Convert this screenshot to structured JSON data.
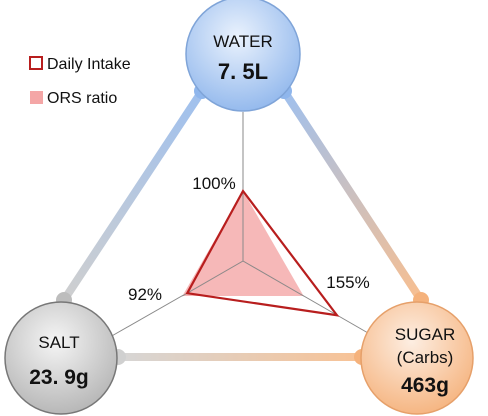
{
  "chart_data": {
    "type": "radar",
    "axes": [
      {
        "key": "water",
        "name": "WATER",
        "amount": "7. 5L",
        "daily_intake_pct": 100,
        "daily_intake_label": "100%",
        "color": "#8fb6ec"
      },
      {
        "key": "sugar",
        "name": "SUGAR",
        "sub": "(Carbs)",
        "amount": "463g",
        "daily_intake_pct": 155,
        "daily_intake_label": "155%",
        "color": "#f5b27c"
      },
      {
        "key": "salt",
        "name": "SALT",
        "amount": "23. 9g",
        "daily_intake_pct": 92,
        "daily_intake_label": "92%",
        "color": "#bfbfbf"
      }
    ],
    "series": [
      {
        "name": "Daily Intake",
        "style": "outline",
        "color": "#b81e1e",
        "values": [
          100,
          155,
          92
        ]
      },
      {
        "name": "ORS ratio",
        "style": "filled",
        "color": "#f4a6a6",
        "values": [
          100,
          100,
          100
        ]
      }
    ],
    "legend": {
      "position": "top-left"
    }
  }
}
